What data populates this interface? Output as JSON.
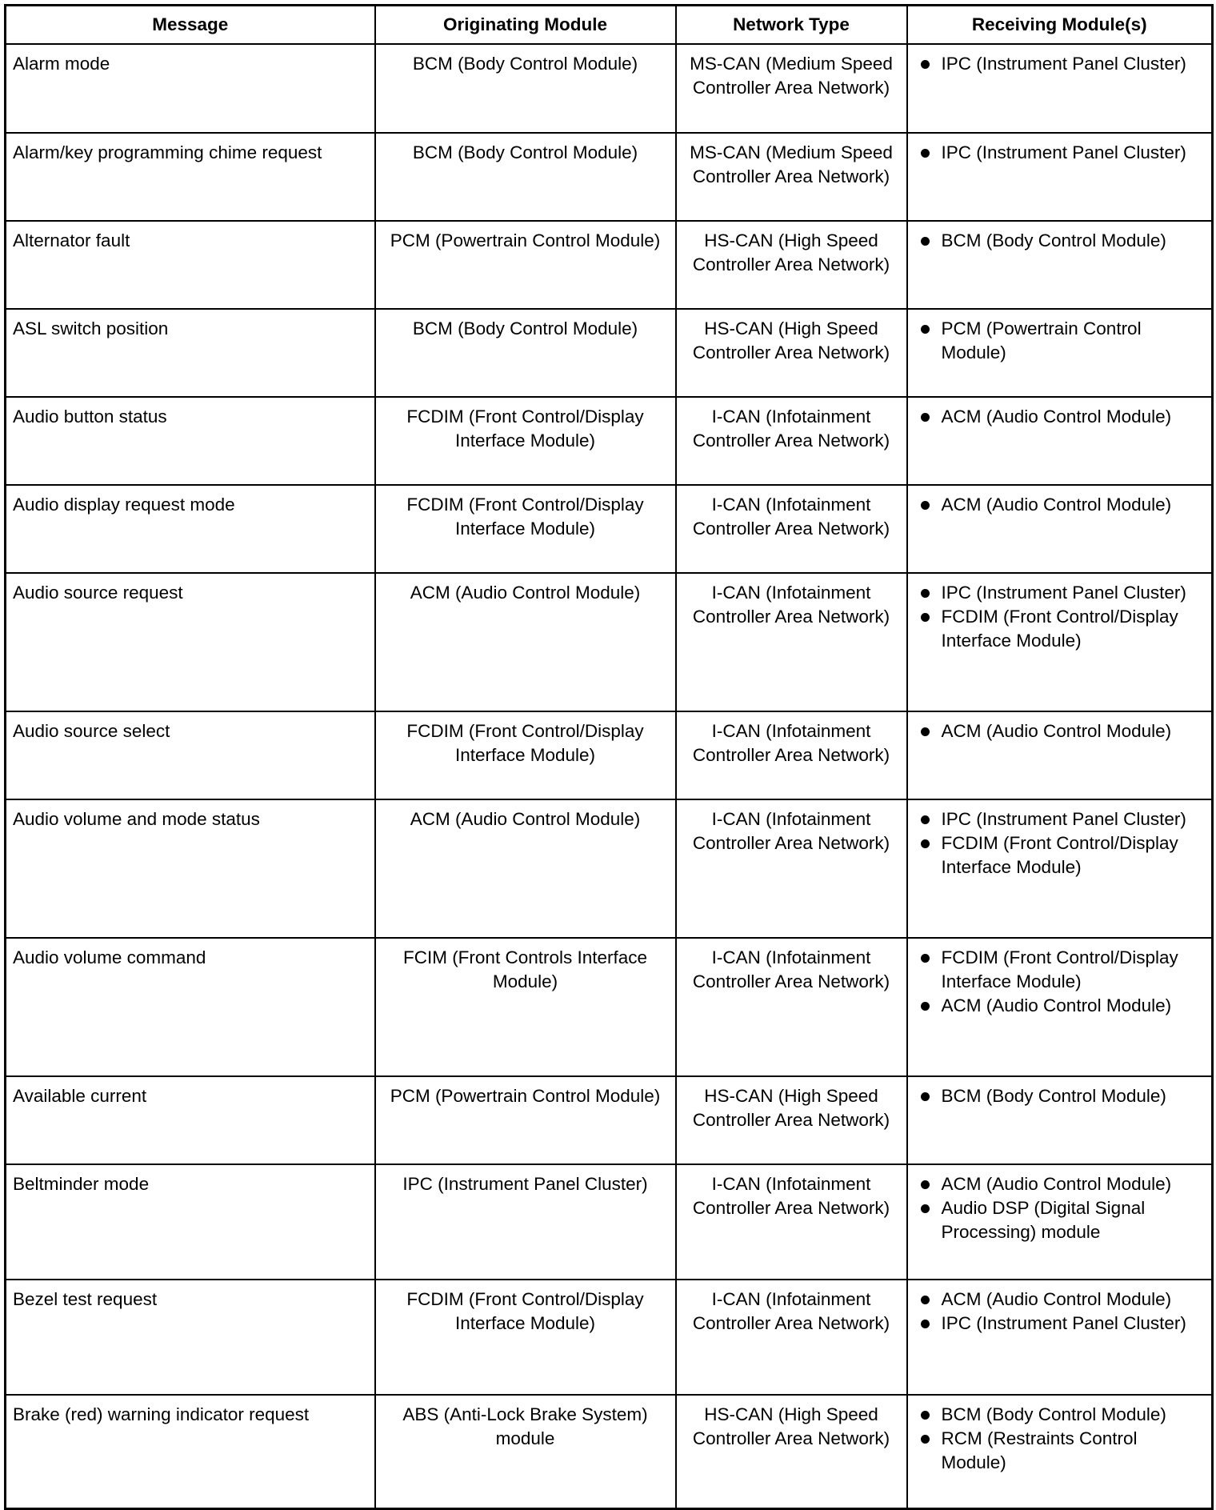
{
  "headers": [
    "Message",
    "Originating Module",
    "Network Type",
    "Receiving Module(s)"
  ],
  "rows": [
    {
      "message": "Alarm mode",
      "origin": "BCM (Body Control Module)",
      "network": "MS-CAN (Medium Speed Controller Area Network)",
      "receivers": [
        "IPC (Instrument Panel Cluster)"
      ]
    },
    {
      "message": "Alarm/key programming chime request",
      "origin": "BCM (Body Control Module)",
      "network": "MS-CAN (Medium Speed Controller Area Network)",
      "receivers": [
        "IPC (Instrument Panel Cluster)"
      ]
    },
    {
      "message": "Alternator fault",
      "origin": "PCM (Powertrain Control Module)",
      "network": "HS-CAN (High Speed Controller Area Network)",
      "receivers": [
        "BCM (Body Control Module)"
      ]
    },
    {
      "message": "ASL switch position",
      "origin": "BCM (Body Control Module)",
      "network": "HS-CAN (High Speed Controller Area Network)",
      "receivers": [
        "PCM (Powertrain Control Module)"
      ]
    },
    {
      "message": "Audio button status",
      "origin": "FCDIM (Front Control/Display Interface Module)",
      "network": "I-CAN (Infotainment Controller Area Network)",
      "receivers": [
        "ACM (Audio Control Module)"
      ]
    },
    {
      "message": "Audio display request mode",
      "origin": "FCDIM (Front Control/Display Interface Module)",
      "network": "I-CAN (Infotainment Controller Area Network)",
      "receivers": [
        "ACM (Audio Control Module)"
      ]
    },
    {
      "message": "Audio source request",
      "origin": "ACM (Audio Control Module)",
      "network": "I-CAN (Infotainment Controller Area Network)",
      "receivers": [
        "IPC (Instrument Panel Cluster)",
        "FCDIM (Front Control/Display Interface Module)"
      ]
    },
    {
      "message": "Audio source select",
      "origin": "FCDIM (Front Control/Display Interface Module)",
      "network": "I-CAN (Infotainment Controller Area Network)",
      "receivers": [
        "ACM (Audio Control Module)"
      ]
    },
    {
      "message": "Audio volume and mode status",
      "origin": "ACM (Audio Control Module)",
      "network": "I-CAN (Infotainment Controller Area Network)",
      "receivers": [
        "IPC (Instrument Panel Cluster)",
        "FCDIM (Front Control/Display Interface Module)"
      ]
    },
    {
      "message": "Audio volume command",
      "origin": "FCIM (Front Controls Interface Module)",
      "network": "I-CAN (Infotainment Controller Area Network)",
      "receivers": [
        "FCDIM (Front Control/Display Interface Module)",
        "ACM (Audio Control Module)"
      ]
    },
    {
      "message": "Available current",
      "origin": "PCM (Powertrain Control Module)",
      "network": "HS-CAN (High Speed Controller Area Network)",
      "receivers": [
        "BCM (Body Control Module)"
      ]
    },
    {
      "message": "Beltminder mode",
      "origin": "IPC (Instrument Panel Cluster)",
      "network": "I-CAN (Infotainment Controller Area Network)",
      "receivers": [
        "ACM (Audio Control Module)",
        "Audio DSP (Digital Signal Processing) module"
      ]
    },
    {
      "message": "Bezel test request",
      "origin": "FCDIM (Front Control/Display Interface Module)",
      "network": "I-CAN (Infotainment Controller Area Network)",
      "receivers": [
        "ACM (Audio Control Module)",
        "IPC (Instrument Panel Cluster)"
      ]
    },
    {
      "message": "Brake (red) warning indicator request",
      "origin": "ABS (Anti-Lock Brake System) module",
      "network": "HS-CAN (High Speed Controller Area Network)",
      "receivers": [
        "BCM (Body Control Module)",
        "RCM (Restraints Control Module)"
      ]
    }
  ]
}
